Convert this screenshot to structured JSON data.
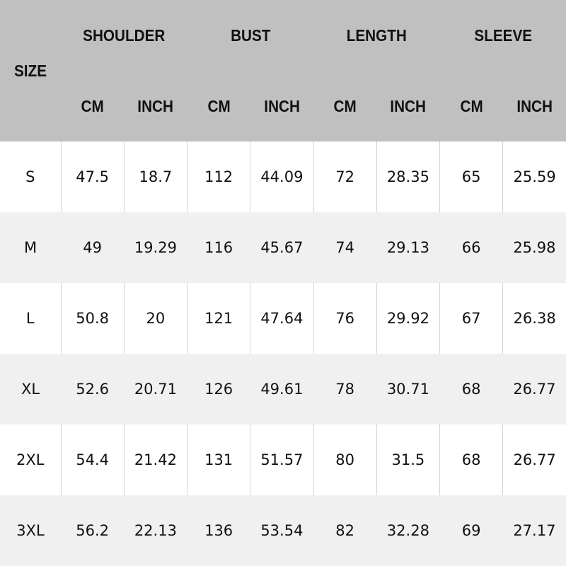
{
  "header": {
    "size": "SIZE",
    "groups": [
      "SHOULDER",
      "BUST",
      "LENGTH",
      "SLEEVE"
    ],
    "units": [
      "CM",
      "INCH",
      "CM",
      "INCH",
      "CM",
      "INCH",
      "CM",
      "INCH"
    ]
  },
  "rows": [
    [
      "S",
      "47.5",
      "18.7",
      "112",
      "44.09",
      "72",
      "28.35",
      "65",
      "25.59"
    ],
    [
      "M",
      "49",
      "19.29",
      "116",
      "45.67",
      "74",
      "29.13",
      "66",
      "25.98"
    ],
    [
      "L",
      "50.8",
      "20",
      "121",
      "47.64",
      "76",
      "29.92",
      "67",
      "26.38"
    ],
    [
      "XL",
      "52.6",
      "20.71",
      "126",
      "49.61",
      "78",
      "30.71",
      "68",
      "26.77"
    ],
    [
      "2XL",
      "54.4",
      "21.42",
      "131",
      "51.57",
      "80",
      "31.5",
      "68",
      "26.77"
    ],
    [
      "3XL",
      "56.2",
      "22.13",
      "136",
      "53.54",
      "82",
      "32.28",
      "69",
      "27.17"
    ]
  ],
  "colors": {
    "header_bg": "#c0c0c0",
    "stripe": "#f0f0f0"
  }
}
